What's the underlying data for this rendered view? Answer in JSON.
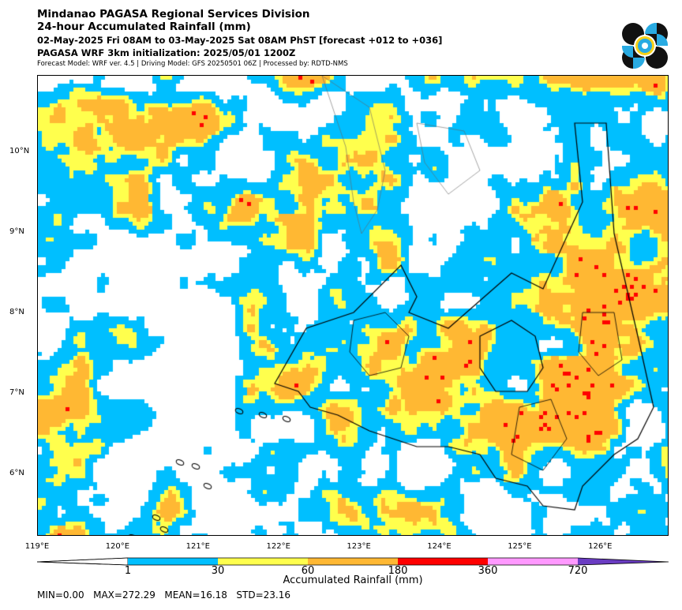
{
  "header": {
    "title": "Mindanao PAGASA Regional Services Division",
    "subtitle": "24-hour Accumulated Rainfall (mm)",
    "period": "02-May-2025 Fri 08AM to 03-May-2025 Sat 08AM PhST [forecast +012 to +036]",
    "init": "PAGASA WRF 3km initialization: 2025/05/01 1200Z",
    "model_info": "Forecast Model: WRF ver. 4.5 | Driving Model: GFS 20250501 06Z | Processed by: RDTD-NMS"
  },
  "logo": {
    "icon": "pagasa-logo-icon"
  },
  "map": {
    "y_ticks": [
      {
        "label": "10°N",
        "lat": 10
      },
      {
        "label": "9°N",
        "lat": 9
      },
      {
        "label": "8°N",
        "lat": 8
      },
      {
        "label": "7°N",
        "lat": 7
      },
      {
        "label": "6°N",
        "lat": 6
      }
    ],
    "x_ticks": [
      {
        "label": "119°E",
        "lon": 119
      },
      {
        "label": "120°E",
        "lon": 120
      },
      {
        "label": "121°E",
        "lon": 121
      },
      {
        "label": "122°E",
        "lon": 122
      },
      {
        "label": "123°E",
        "lon": 123
      },
      {
        "label": "124°E",
        "lon": 124
      },
      {
        "label": "125°E",
        "lon": 125
      },
      {
        "label": "126°E",
        "lon": 126
      }
    ]
  },
  "colorbar": {
    "title": "Accumulated Rainfall (mm)",
    "tick_labels": [
      "1",
      "30",
      "60",
      "180",
      "360",
      "720"
    ],
    "colors": {
      "below": "#ffffff",
      "c1": "#00bfff",
      "c2": "#ffff4d",
      "c3": "#ffb833",
      "c4": "#ff0000",
      "c5": "#ff99ff",
      "above": "#6a3cc2"
    }
  },
  "stats": {
    "min_label": "MIN=0.00",
    "max_label": "MAX=272.29",
    "mean_label": "MEAN=16.18",
    "std_label": "STD=23.16"
  }
}
